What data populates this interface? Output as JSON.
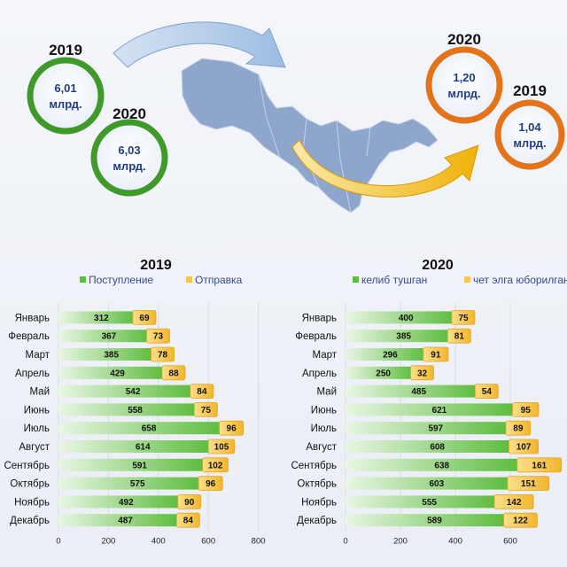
{
  "header": {
    "import": {
      "circles": [
        {
          "year": "2019",
          "value": "6,01",
          "unit": "млрд."
        },
        {
          "year": "2020",
          "value": "6,03",
          "unit": "млрд."
        }
      ]
    },
    "export": {
      "circles": [
        {
          "year": "2020",
          "value": "1,20",
          "unit": "млрд."
        },
        {
          "year": "2019",
          "value": "1,04",
          "unit": "млрд."
        }
      ]
    },
    "colors": {
      "green_ring": "#3f9a2a",
      "orange_ring": "#e3741a",
      "map": "#8ea5cc",
      "arrow_blue": "#a9c4e4",
      "arrow_gold": "#f2b30c"
    }
  },
  "chart_data": [
    {
      "type": "bar",
      "orientation": "horizontal",
      "stacked": true,
      "title": "2019",
      "categories": [
        "Январь",
        "Февраль",
        "Март",
        "Апрель",
        "Май",
        "Июнь",
        "Июль",
        "Август",
        "Сентябрь",
        "Октябрь",
        "Ноябрь",
        "Декабрь"
      ],
      "series": [
        {
          "name": "Поступление",
          "color": "#5cbc3c",
          "values": [
            312,
            367,
            385,
            429,
            542,
            558,
            658,
            614,
            591,
            575,
            492,
            487
          ]
        },
        {
          "name": "Отправка",
          "color": "#f7c64a",
          "values": [
            69,
            73,
            78,
            88,
            84,
            75,
            96,
            105,
            102,
            96,
            90,
            84
          ]
        }
      ],
      "xlim": [
        0,
        800
      ],
      "xticks": [
        "0",
        "200",
        "400",
        "600",
        "800"
      ],
      "legend": "top"
    },
    {
      "type": "bar",
      "orientation": "horizontal",
      "stacked": true,
      "title": "2020",
      "categories": [
        "Январь",
        "Февраль",
        "Март",
        "Апрель",
        "Май",
        "Июнь",
        "Июль",
        "Август",
        "Сентябрь",
        "Октябрь",
        "Ноябрь",
        "Декабрь"
      ],
      "series": [
        {
          "name": "келиб тушган",
          "color": "#5cbc3c",
          "values": [
            400,
            385,
            296,
            250,
            485,
            621,
            597,
            608,
            638,
            603,
            555,
            589
          ]
        },
        {
          "name": "чет элга юборилган",
          "color": "#f7c64a",
          "values": [
            75,
            81,
            91,
            32,
            54,
            95,
            89,
            107,
            161,
            151,
            142,
            122
          ]
        }
      ],
      "xlim": [
        0,
        800
      ],
      "xticks": [
        "0",
        "200",
        "400",
        "600"
      ],
      "legend": "top"
    }
  ]
}
